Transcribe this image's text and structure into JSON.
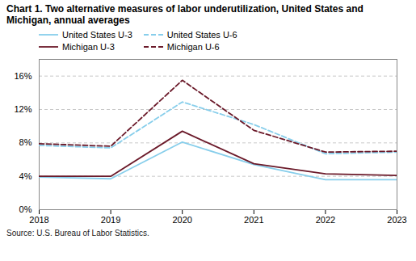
{
  "chart_data": {
    "type": "line",
    "title": "Chart 1. Two alternative measures of labor underutilization, United States and Michigan, annual averages",
    "source": "Source: U.S. Bureau of Labor Statistics.",
    "x": [
      2018,
      2019,
      2020,
      2021,
      2022,
      2023
    ],
    "series": [
      {
        "name": "United States U-3",
        "color": "#87CEEB",
        "line_style": "solid",
        "values": [
          3.9,
          3.7,
          8.1,
          5.4,
          3.6,
          3.6
        ]
      },
      {
        "name": "United States U-6",
        "color": "#87CEEB",
        "line_style": "dashed",
        "values": [
          7.7,
          7.4,
          12.9,
          10.2,
          6.7,
          6.9
        ]
      },
      {
        "name": "Michigan U-3",
        "color": "#6B1A2A",
        "line_style": "solid",
        "values": [
          4.0,
          4.0,
          9.4,
          5.5,
          4.3,
          4.1
        ]
      },
      {
        "name": "Michigan U-6",
        "color": "#6B1A2A",
        "line_style": "dashed",
        "values": [
          7.9,
          7.6,
          15.5,
          9.5,
          6.9,
          7.0
        ]
      }
    ],
    "xlim": [
      2018,
      2023
    ],
    "xticks": [
      2018,
      2019,
      2020,
      2021,
      2022,
      2023
    ],
    "ylim": [
      0,
      18
    ],
    "yticks": [
      {
        "value": 0,
        "label": "0%"
      },
      {
        "value": 4,
        "label": "4%"
      },
      {
        "value": 8,
        "label": "8%"
      },
      {
        "value": 12,
        "label": "12%"
      },
      {
        "value": 16,
        "label": "16%"
      }
    ],
    "grid": true,
    "legend": "top"
  }
}
